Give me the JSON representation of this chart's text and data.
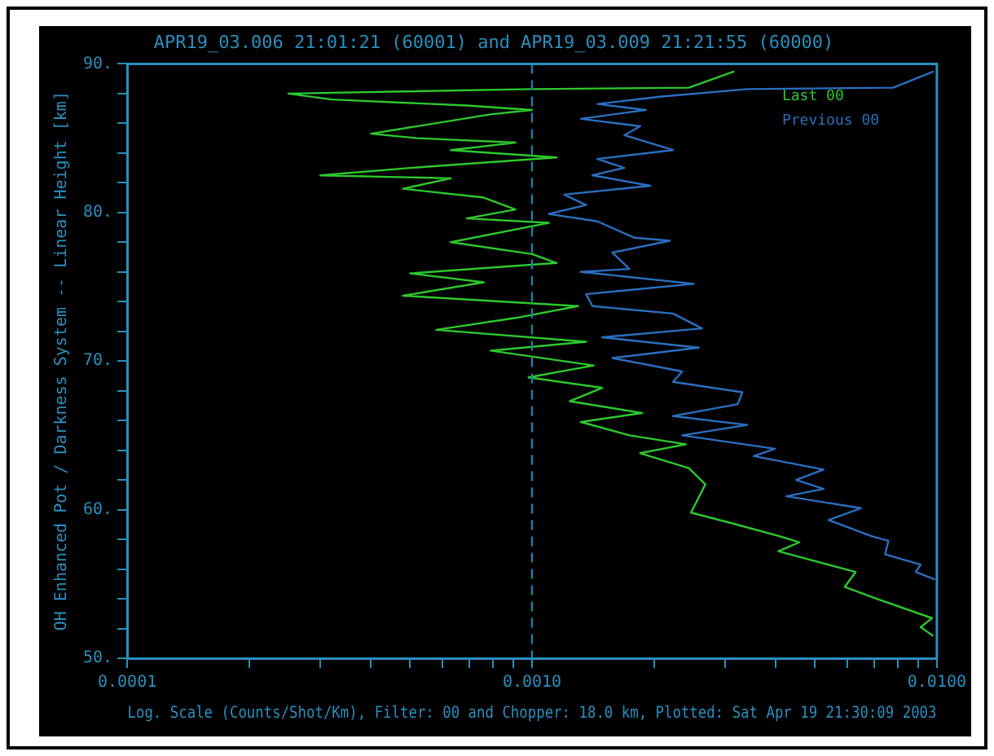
{
  "chart_data": {
    "type": "line",
    "title": "APR19_03.006 21:01:21 (60001) and APR19_03.009 21:21:55 (60000)",
    "xlabel": "Log. Scale (Counts/Shot/Km), Filter: 00 and Chopper: 18.0 km, Plotted: Sat Apr 19 21:30:09 2003",
    "ylabel": "OH Enhanced Pot / Darkness System -- Linear Height [km]",
    "log": "x",
    "grid": false,
    "legend": "top right",
    "marker": "none",
    "line_style": "solid",
    "xlim": [
      0.0001,
      0.01
    ],
    "xticks": [
      {
        "value": 0.0001,
        "label": "0.0001"
      },
      {
        "value": 0.0002,
        "label": null
      },
      {
        "value": 0.0003,
        "label": null
      },
      {
        "value": 0.0004,
        "label": null
      },
      {
        "value": 0.0005,
        "label": null
      },
      {
        "value": 0.0006,
        "label": null
      },
      {
        "value": 0.0007,
        "label": null
      },
      {
        "value": 0.0008,
        "label": null
      },
      {
        "value": 0.0009,
        "label": null
      },
      {
        "value": 0.001,
        "label": "0.0010"
      },
      {
        "value": 0.002,
        "label": null
      },
      {
        "value": 0.003,
        "label": null
      },
      {
        "value": 0.004,
        "label": null
      },
      {
        "value": 0.005,
        "label": null
      },
      {
        "value": 0.006,
        "label": null
      },
      {
        "value": 0.007,
        "label": null
      },
      {
        "value": 0.008,
        "label": null
      },
      {
        "value": 0.009,
        "label": null
      },
      {
        "value": 0.01,
        "label": "0.0100"
      }
    ],
    "ylim": [
      50,
      90
    ],
    "yticks": [
      {
        "value": 50,
        "label": "50."
      },
      {
        "value": 52,
        "label": null
      },
      {
        "value": 54,
        "label": null
      },
      {
        "value": 56,
        "label": null
      },
      {
        "value": 58,
        "label": null
      },
      {
        "value": 60,
        "label": "60."
      },
      {
        "value": 62,
        "label": null
      },
      {
        "value": 64,
        "label": null
      },
      {
        "value": 66,
        "label": null
      },
      {
        "value": 68,
        "label": null
      },
      {
        "value": 70,
        "label": "70."
      },
      {
        "value": 72,
        "label": null
      },
      {
        "value": 74,
        "label": null
      },
      {
        "value": 76,
        "label": null
      },
      {
        "value": 78,
        "label": null
      },
      {
        "value": 80,
        "label": "80."
      },
      {
        "value": 82,
        "label": null
      },
      {
        "value": 84,
        "label": null
      },
      {
        "value": 86,
        "label": null
      },
      {
        "value": 88,
        "label": null
      },
      {
        "value": 90,
        "label": "90."
      }
    ],
    "ref_lines": [
      {
        "axis": "x",
        "value": 0.001,
        "color": "#1f7fa8",
        "line_style": "dashed"
      }
    ],
    "series": [
      {
        "name": "Last 00",
        "color": "#2ec82e",
        "x": [
          0.00316,
          0.00244,
          0.001,
          0.00025,
          0.00032,
          0.00069,
          0.001,
          0.00079,
          0.0004,
          0.00052,
          0.00091,
          0.00063,
          0.00115,
          0.0005,
          0.0003,
          0.00063,
          0.00048,
          0.00076,
          0.00091,
          0.00069,
          0.0011,
          0.00063,
          0.001,
          0.00115,
          0.0005,
          0.00076,
          0.00048,
          0.0013,
          0.00091,
          0.00058,
          0.00136,
          0.00079,
          0.00142,
          0.00098,
          0.00149,
          0.00124,
          0.00187,
          0.00132,
          0.00174,
          0.0024,
          0.00185,
          0.00244,
          0.00268,
          0.00247,
          0.0031,
          0.0041,
          0.00457,
          0.00406,
          0.0063,
          0.00592,
          0.00711,
          0.00973,
          0.00912,
          0.0098
        ],
        "values": [
          89.5,
          88.4,
          88.3,
          88.0,
          87.6,
          87.2,
          86.9,
          86.6,
          85.3,
          85.0,
          84.7,
          84.2,
          83.7,
          83.0,
          82.5,
          82.3,
          81.6,
          81.0,
          80.2,
          79.6,
          79.3,
          78.0,
          77.2,
          76.6,
          75.9,
          75.3,
          74.4,
          73.7,
          72.9,
          72.1,
          71.3,
          70.7,
          69.7,
          68.9,
          68.2,
          67.3,
          66.5,
          65.9,
          65.0,
          64.4,
          63.8,
          62.8,
          61.7,
          59.8,
          59.1,
          58.2,
          57.8,
          57.2,
          55.8,
          54.8,
          54.0,
          52.7,
          52.1,
          51.5
        ]
      },
      {
        "name": "Previous 00",
        "color": "#2a6fc0",
        "x": [
          0.00982,
          0.0078,
          0.0034,
          0.00209,
          0.00145,
          0.00191,
          0.00132,
          0.00185,
          0.00169,
          0.00223,
          0.00145,
          0.00169,
          0.00141,
          0.00196,
          0.0012,
          0.00136,
          0.0011,
          0.00145,
          0.00179,
          0.00219,
          0.00158,
          0.00174,
          0.00132,
          0.00251,
          0.00136,
          0.00141,
          0.00223,
          0.00263,
          0.00149,
          0.00258,
          0.00158,
          0.00235,
          0.00223,
          0.00331,
          0.00322,
          0.00223,
          0.0034,
          0.00235,
          0.00398,
          0.00353,
          0.00525,
          0.00449,
          0.00525,
          0.00425,
          0.00649,
          0.0054,
          0.00692,
          0.00759,
          0.00745,
          0.00912,
          0.00887,
          0.0099
        ],
        "values": [
          89.5,
          88.4,
          88.3,
          87.8,
          87.3,
          86.9,
          86.3,
          85.8,
          85.2,
          84.2,
          83.6,
          83.0,
          82.5,
          81.8,
          81.2,
          80.5,
          79.9,
          79.4,
          78.3,
          78.1,
          77.3,
          76.2,
          76.0,
          75.2,
          74.5,
          73.7,
          73.2,
          72.2,
          71.6,
          70.9,
          70.2,
          69.3,
          68.6,
          67.9,
          67.1,
          66.3,
          65.7,
          65.0,
          64.1,
          63.6,
          62.7,
          62.0,
          61.4,
          60.9,
          60.1,
          59.3,
          58.2,
          57.9,
          57.0,
          56.3,
          55.8,
          55.3
        ]
      }
    ]
  }
}
